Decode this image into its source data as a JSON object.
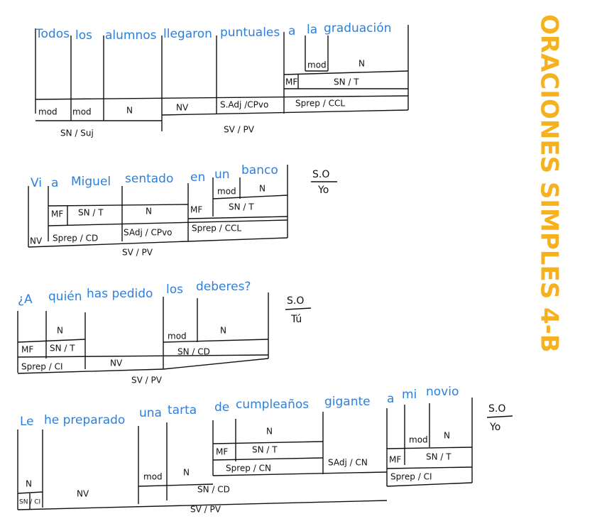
{
  "title": "ORACIONES SIMPLES 4-B",
  "sentences": [
    {
      "words": [
        "Todos",
        "los",
        "alumnos",
        "llegaron",
        "puntuales",
        "a",
        "la",
        "graduación"
      ],
      "labels": [
        "mod",
        "mod",
        "N",
        "NV",
        "S.Adj /CPvo",
        "Sprep / CCL",
        "MF",
        "SN / T",
        "mod",
        "N"
      ],
      "groups": [
        "SN / Suj",
        "SV / PV"
      ]
    },
    {
      "words": [
        "Vi",
        "a",
        "Miguel",
        "sentado",
        "en",
        "un",
        "banco"
      ],
      "labels": [
        "NV",
        "MF",
        "SN / T",
        "Sprep / CD",
        "N",
        "SAdj / CPvo",
        "MF",
        "mod",
        "N",
        "SN / T",
        "Sprep / CCL"
      ],
      "groups": [
        "SV / PV"
      ],
      "subject": [
        "S.O",
        "Yo"
      ]
    },
    {
      "words": [
        "¿A",
        "quién",
        "has pedido",
        "los",
        "deberes?"
      ],
      "labels": [
        "N",
        "MF",
        "SN / T",
        "Sprep / CI",
        "NV",
        "mod",
        "N",
        "SN / CD"
      ],
      "groups": [
        "SV / PV"
      ],
      "subject": [
        "S.O",
        "Tú"
      ]
    },
    {
      "words": [
        "Le",
        "he preparado",
        "una",
        "tarta",
        "de",
        "cumpleaños",
        "gigante",
        "a",
        "mi",
        "novio"
      ],
      "labels": [
        "N",
        "SN / CI",
        "NV",
        "mod",
        "N",
        "MF",
        "N",
        "SN / T",
        "Sprep / CN",
        "SAdj / CN",
        "SN / CD",
        "MF",
        "mod",
        "N",
        "SN / T",
        "Sprep / CI"
      ],
      "groups": [
        "SV / PV"
      ],
      "subject": [
        "S.O",
        "Yo"
      ]
    }
  ]
}
